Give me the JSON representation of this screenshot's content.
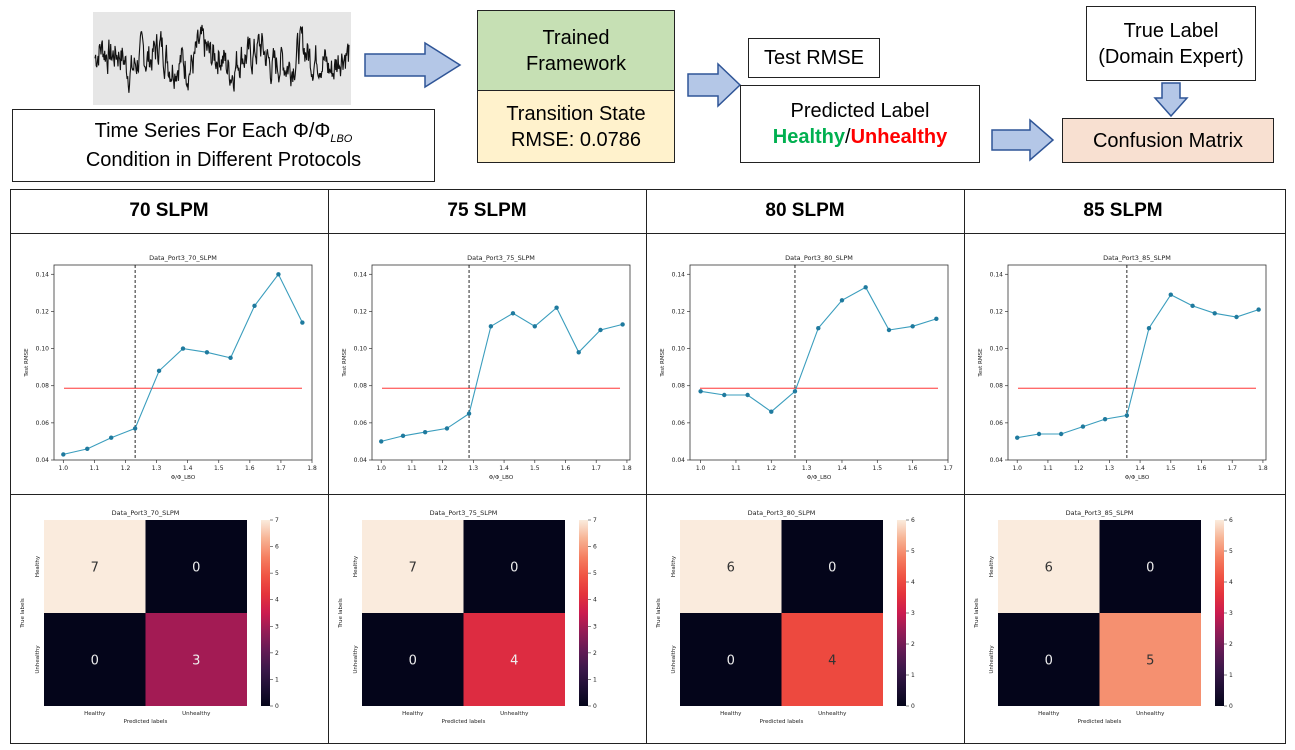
{
  "flow": {
    "timeseries_label_line1": "Time Series For Each",
    "timeseries_label_line2": "Condition in Different Protocols",
    "phi_symbol": "Φ/Φ",
    "phi_sub": "LBO",
    "trained_line1": "Trained",
    "trained_line2": "Framework",
    "transition_line1": "Transition State",
    "transition_line2": "RMSE: 0.0786",
    "test_rmse": "Test RMSE",
    "predicted_label": "Predicted Label",
    "healthy": "Healthy",
    "slash": "/",
    "unhealthy": "Unhealthy",
    "true_label_line1": "True Label",
    "true_label_line2": "(Domain Expert)",
    "confusion_matrix": "Confusion Matrix"
  },
  "columns": [
    {
      "header": "70 SLPM"
    },
    {
      "header": "75 SLPM"
    },
    {
      "header": "80 SLPM"
    },
    {
      "header": "85 SLPM"
    }
  ],
  "colors": {
    "line": "#3a9dbd",
    "threshold": "#ff6b6b",
    "green": "#c6e0b4",
    "yellow": "#fff2cc",
    "peach": "#f8e0d1"
  },
  "chart_data": [
    {
      "type": "line",
      "title": "Data_Port3_70_SLPM",
      "ylabel": "Test RMSE",
      "xlabel": "Φ/Φ_LBO",
      "x": [
        1.0,
        1.077,
        1.154,
        1.231,
        1.308,
        1.385,
        1.462,
        1.538,
        1.615,
        1.692,
        1.769
      ],
      "y": [
        0.043,
        0.046,
        0.052,
        0.057,
        0.088,
        0.1,
        0.098,
        0.095,
        0.123,
        0.14,
        0.114
      ],
      "threshold": 0.0786,
      "vline": 1.231,
      "xlim": [
        0.97,
        1.8
      ],
      "ylim": [
        0.04,
        0.145
      ],
      "xticks": [
        1.0,
        1.1,
        1.2,
        1.3,
        1.4,
        1.5,
        1.6,
        1.7,
        1.8
      ],
      "yticks": [
        0.04,
        0.06,
        0.08,
        0.1,
        0.12,
        0.14
      ]
    },
    {
      "type": "line",
      "title": "Data_Port3_75_SLPM",
      "ylabel": "Test RMSE",
      "xlabel": "Φ/Φ_LBO",
      "x": [
        1.0,
        1.071,
        1.143,
        1.214,
        1.286,
        1.357,
        1.429,
        1.5,
        1.571,
        1.643,
        1.714,
        1.786
      ],
      "y": [
        0.05,
        0.053,
        0.055,
        0.057,
        0.065,
        0.112,
        0.119,
        0.112,
        0.122,
        0.098,
        0.11,
        0.113
      ],
      "threshold": 0.0786,
      "vline": 1.286,
      "xlim": [
        0.97,
        1.81
      ],
      "ylim": [
        0.04,
        0.145
      ],
      "xticks": [
        1.0,
        1.1,
        1.2,
        1.3,
        1.4,
        1.5,
        1.6,
        1.7,
        1.8
      ],
      "yticks": [
        0.04,
        0.06,
        0.08,
        0.1,
        0.12,
        0.14
      ]
    },
    {
      "type": "line",
      "title": "Data_Port3_80_SLPM",
      "ylabel": "Test RMSE",
      "xlabel": "Φ/Φ_LBO",
      "x": [
        1.0,
        1.067,
        1.133,
        1.2,
        1.267,
        1.333,
        1.4,
        1.467,
        1.533,
        1.6,
        1.667
      ],
      "y": [
        0.077,
        0.075,
        0.075,
        0.066,
        0.077,
        0.111,
        0.126,
        0.133,
        0.11,
        0.112,
        0.116
      ],
      "threshold": 0.0786,
      "vline": 1.267,
      "xlim": [
        0.97,
        1.7
      ],
      "ylim": [
        0.04,
        0.145
      ],
      "xticks": [
        1.0,
        1.1,
        1.2,
        1.3,
        1.4,
        1.5,
        1.6,
        1.7
      ],
      "yticks": [
        0.04,
        0.06,
        0.08,
        0.1,
        0.12,
        0.14
      ]
    },
    {
      "type": "line",
      "title": "Data_Port3_85_SLPM",
      "ylabel": "Test RMSE",
      "xlabel": "Φ/Φ_LBO",
      "x": [
        1.0,
        1.071,
        1.143,
        1.214,
        1.286,
        1.357,
        1.429,
        1.5,
        1.571,
        1.643,
        1.714,
        1.786
      ],
      "y": [
        0.052,
        0.054,
        0.054,
        0.058,
        0.062,
        0.064,
        0.111,
        0.129,
        0.123,
        0.119,
        0.117,
        0.121
      ],
      "threshold": 0.0786,
      "vline": 1.357,
      "xlim": [
        0.97,
        1.81
      ],
      "ylim": [
        0.04,
        0.145
      ],
      "xticks": [
        1.0,
        1.1,
        1.2,
        1.3,
        1.4,
        1.5,
        1.6,
        1.7,
        1.8
      ],
      "yticks": [
        0.04,
        0.06,
        0.08,
        0.1,
        0.12,
        0.14
      ]
    },
    {
      "type": "heatmap",
      "title": "Data_Port3_70_SLPM",
      "xlabel": "Predicted labels",
      "ylabel": "True labels",
      "labels": [
        "Healthy",
        "Unhealthy"
      ],
      "matrix": [
        [
          7,
          0
        ],
        [
          0,
          3
        ]
      ],
      "vmax": 7,
      "colorbar_ticks": [
        0,
        1,
        2,
        3,
        4,
        5,
        6,
        7
      ]
    },
    {
      "type": "heatmap",
      "title": "Data_Port3_75_SLPM",
      "xlabel": "Predicted labels",
      "ylabel": "True labels",
      "labels": [
        "Healthy",
        "Unhealthy"
      ],
      "matrix": [
        [
          7,
          0
        ],
        [
          0,
          4
        ]
      ],
      "vmax": 7,
      "colorbar_ticks": [
        0,
        1,
        2,
        3,
        4,
        5,
        6,
        7
      ]
    },
    {
      "type": "heatmap",
      "title": "Data_Port3_80_SLPM",
      "xlabel": "Predicted labels",
      "ylabel": "True labels",
      "labels": [
        "Healthy",
        "Unhealthy"
      ],
      "matrix": [
        [
          6,
          0
        ],
        [
          0,
          4
        ]
      ],
      "vmax": 6,
      "colorbar_ticks": [
        0,
        1,
        2,
        3,
        4,
        5,
        6
      ]
    },
    {
      "type": "heatmap",
      "title": "Data_Port3_85_SLPM",
      "xlabel": "Predicted labels",
      "ylabel": "True labels",
      "labels": [
        "Healthy",
        "Unhealthy"
      ],
      "matrix": [
        [
          6,
          0
        ],
        [
          0,
          5
        ]
      ],
      "vmax": 6,
      "colorbar_ticks": [
        0,
        1,
        2,
        3,
        4,
        5,
        6
      ]
    }
  ]
}
